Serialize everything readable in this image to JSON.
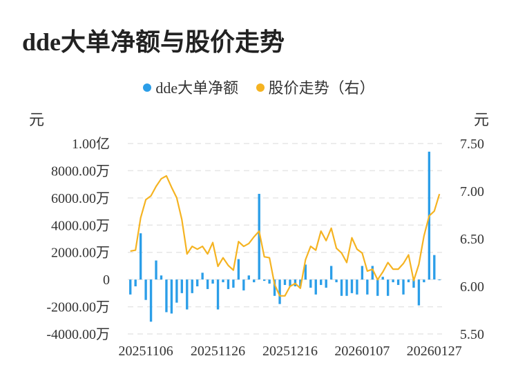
{
  "title": "dde大单净额与股价走势",
  "legend": [
    {
      "label": "dde大单净额",
      "color": "#2b9ee8"
    },
    {
      "label": "股价走势（右）",
      "color": "#f5b321"
    }
  ],
  "unit_left": "元",
  "unit_right": "元",
  "chart_data": {
    "type": "bar+line",
    "title": "dde大单净额与股价走势",
    "left_axis": {
      "min": -4000,
      "max": 10000,
      "ticks": [
        {
          "value": 10000,
          "label": "1.00亿"
        },
        {
          "value": 8000,
          "label": "8000.00万"
        },
        {
          "value": 6000,
          "label": "6000.00万"
        },
        {
          "value": 4000,
          "label": "4000.00万"
        },
        {
          "value": 2000,
          "label": "2000.00万"
        },
        {
          "value": 0,
          "label": "0"
        },
        {
          "value": -2000,
          "label": "-2000.00万"
        },
        {
          "value": -4000,
          "label": "-4000.00万"
        }
      ]
    },
    "right_axis": {
      "min": 5.5,
      "max": 7.5,
      "ticks": [
        {
          "value": 7.5,
          "label": "7.50"
        },
        {
          "value": 7.0,
          "label": "7.00"
        },
        {
          "value": 6.5,
          "label": "6.50"
        },
        {
          "value": 6.0,
          "label": "6.00"
        },
        {
          "value": 5.5,
          "label": "5.50"
        }
      ]
    },
    "x_tick_labels": [
      {
        "index": 3,
        "label": "20251106"
      },
      {
        "index": 17,
        "label": "20251126"
      },
      {
        "index": 31,
        "label": "20251216"
      },
      {
        "index": 45,
        "label": "20260107"
      },
      {
        "index": 59,
        "label": "20260127"
      }
    ],
    "grid": true,
    "series": [
      {
        "name": "dde大单净额",
        "type": "bar",
        "color": "#2b9ee8",
        "values": [
          -1100,
          -500,
          3400,
          -1500,
          -3100,
          1400,
          300,
          -2400,
          -2500,
          -1700,
          -1000,
          -2200,
          -1000,
          -500,
          500,
          -700,
          -300,
          -2200,
          -200,
          -700,
          -600,
          1500,
          -800,
          300,
          -200,
          6300,
          -100,
          -300,
          -1200,
          -1800,
          -400,
          -500,
          -500,
          -500,
          1100,
          -600,
          -1100,
          -400,
          -600,
          1000,
          -200,
          -1200,
          -1200,
          -1000,
          -1100,
          1000,
          -1100,
          1000,
          -1200,
          200,
          -1200,
          -200,
          -400,
          -1100,
          -200,
          -600,
          -1900,
          -200,
          9400,
          1800,
          0
        ],
        "unit": "万"
      },
      {
        "name": "股价走势（右）",
        "type": "line",
        "color": "#f5b321",
        "values": [
          6.37,
          6.38,
          6.72,
          6.91,
          6.95,
          7.05,
          7.13,
          7.16,
          7.04,
          6.93,
          6.7,
          6.34,
          6.42,
          6.39,
          6.42,
          6.34,
          6.46,
          6.21,
          6.3,
          6.22,
          6.17,
          6.47,
          6.42,
          6.45,
          6.52,
          6.58,
          6.31,
          6.3,
          6.02,
          5.9,
          5.9,
          6.0,
          6.03,
          5.98,
          6.28,
          6.42,
          6.38,
          6.58,
          6.48,
          6.61,
          6.4,
          6.35,
          6.25,
          6.51,
          6.39,
          6.35,
          6.16,
          6.18,
          6.07,
          6.15,
          6.25,
          6.18,
          6.18,
          6.24,
          6.33,
          6.06,
          6.23,
          6.53,
          6.74,
          6.79,
          6.97
        ]
      }
    ]
  }
}
